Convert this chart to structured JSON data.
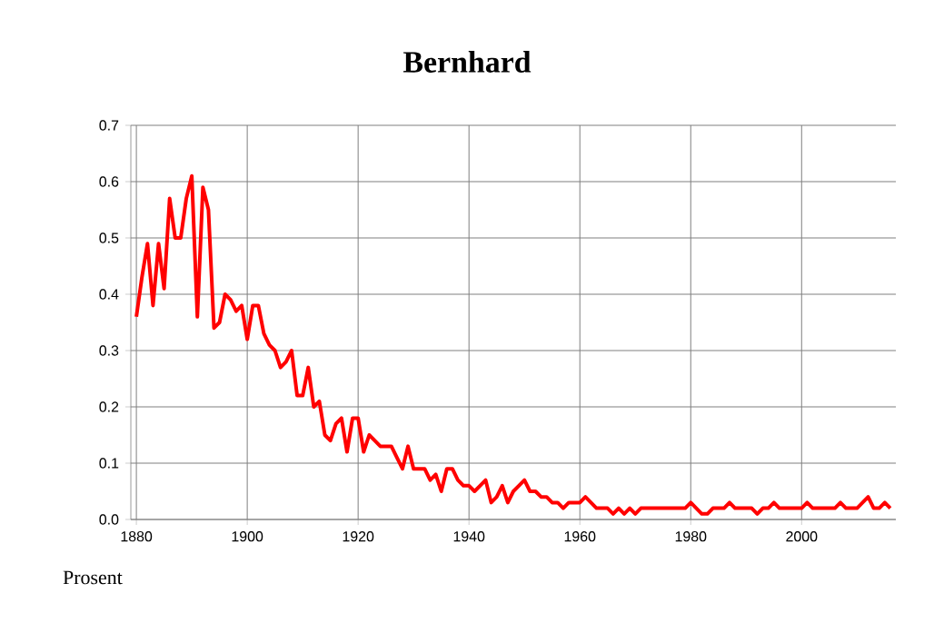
{
  "chart_data": {
    "type": "line",
    "title": "Bernhard",
    "ylabel": "Prosent",
    "x": [
      1880,
      1881,
      1882,
      1883,
      1884,
      1885,
      1886,
      1887,
      1888,
      1889,
      1890,
      1891,
      1892,
      1893,
      1894,
      1895,
      1896,
      1897,
      1898,
      1899,
      1900,
      1901,
      1902,
      1903,
      1904,
      1905,
      1906,
      1907,
      1908,
      1909,
      1910,
      1911,
      1912,
      1913,
      1914,
      1915,
      1916,
      1917,
      1918,
      1919,
      1920,
      1921,
      1922,
      1923,
      1924,
      1925,
      1926,
      1927,
      1928,
      1929,
      1930,
      1931,
      1932,
      1933,
      1934,
      1935,
      1936,
      1937,
      1938,
      1939,
      1940,
      1941,
      1942,
      1943,
      1944,
      1945,
      1946,
      1947,
      1948,
      1949,
      1950,
      1951,
      1952,
      1953,
      1954,
      1955,
      1956,
      1957,
      1958,
      1959,
      1960,
      1961,
      1962,
      1963,
      1964,
      1965,
      1966,
      1967,
      1968,
      1969,
      1970,
      1971,
      1972,
      1973,
      1974,
      1975,
      1976,
      1977,
      1978,
      1979,
      1980,
      1981,
      1982,
      1983,
      1984,
      1985,
      1986,
      1987,
      1988,
      1989,
      1990,
      1991,
      1992,
      1993,
      1994,
      1995,
      1996,
      1997,
      1998,
      1999,
      2000,
      2001,
      2002,
      2003,
      2004,
      2005,
      2006,
      2007,
      2008,
      2009,
      2010,
      2011,
      2012,
      2013,
      2014,
      2015,
      2016
    ],
    "series": [
      {
        "color": "#ff0000",
        "values": [
          0.36,
          0.43,
          0.49,
          0.38,
          0.49,
          0.41,
          0.57,
          0.5,
          0.5,
          0.57,
          0.61,
          0.36,
          0.59,
          0.55,
          0.34,
          0.35,
          0.4,
          0.39,
          0.37,
          0.38,
          0.32,
          0.38,
          0.38,
          0.33,
          0.31,
          0.3,
          0.27,
          0.28,
          0.3,
          0.22,
          0.22,
          0.27,
          0.2,
          0.21,
          0.15,
          0.14,
          0.17,
          0.18,
          0.12,
          0.18,
          0.18,
          0.12,
          0.15,
          0.14,
          0.13,
          0.13,
          0.13,
          0.11,
          0.09,
          0.13,
          0.09,
          0.09,
          0.09,
          0.07,
          0.08,
          0.05,
          0.09,
          0.09,
          0.07,
          0.06,
          0.06,
          0.05,
          0.06,
          0.07,
          0.03,
          0.04,
          0.06,
          0.03,
          0.05,
          0.06,
          0.07,
          0.05,
          0.05,
          0.04,
          0.04,
          0.03,
          0.03,
          0.02,
          0.03,
          0.03,
          0.03,
          0.04,
          0.03,
          0.02,
          0.02,
          0.02,
          0.01,
          0.02,
          0.01,
          0.02,
          0.01,
          0.02,
          0.02,
          0.02,
          0.02,
          0.02,
          0.02,
          0.02,
          0.02,
          0.02,
          0.03,
          0.02,
          0.01,
          0.01,
          0.02,
          0.02,
          0.02,
          0.03,
          0.02,
          0.02,
          0.02,
          0.02,
          0.01,
          0.02,
          0.02,
          0.03,
          0.02,
          0.02,
          0.02,
          0.02,
          0.02,
          0.03,
          0.02,
          0.02,
          0.02,
          0.02,
          0.02,
          0.03,
          0.02,
          0.02,
          0.02,
          0.03,
          0.04,
          0.02,
          0.02,
          0.03,
          0.02
        ]
      }
    ],
    "xlim": [
      1879,
      2017
    ],
    "ylim": [
      0,
      0.7
    ],
    "xticks": [
      1880,
      1900,
      1920,
      1940,
      1960,
      1980,
      2000
    ],
    "yticks": [
      {
        "value": 0,
        "label": "0.0"
      },
      {
        "value": 0.1,
        "label": "0.1"
      },
      {
        "value": 0.2,
        "label": "0.2"
      },
      {
        "value": 0.3,
        "label": "0.3"
      },
      {
        "value": 0.4,
        "label": "0.4"
      },
      {
        "value": 0.5,
        "label": "0.5"
      },
      {
        "value": 0.6,
        "label": "0.6"
      },
      {
        "value": 0.7,
        "label": "0.7"
      }
    ],
    "grid": true,
    "marker": "none",
    "line_style": "solid"
  }
}
